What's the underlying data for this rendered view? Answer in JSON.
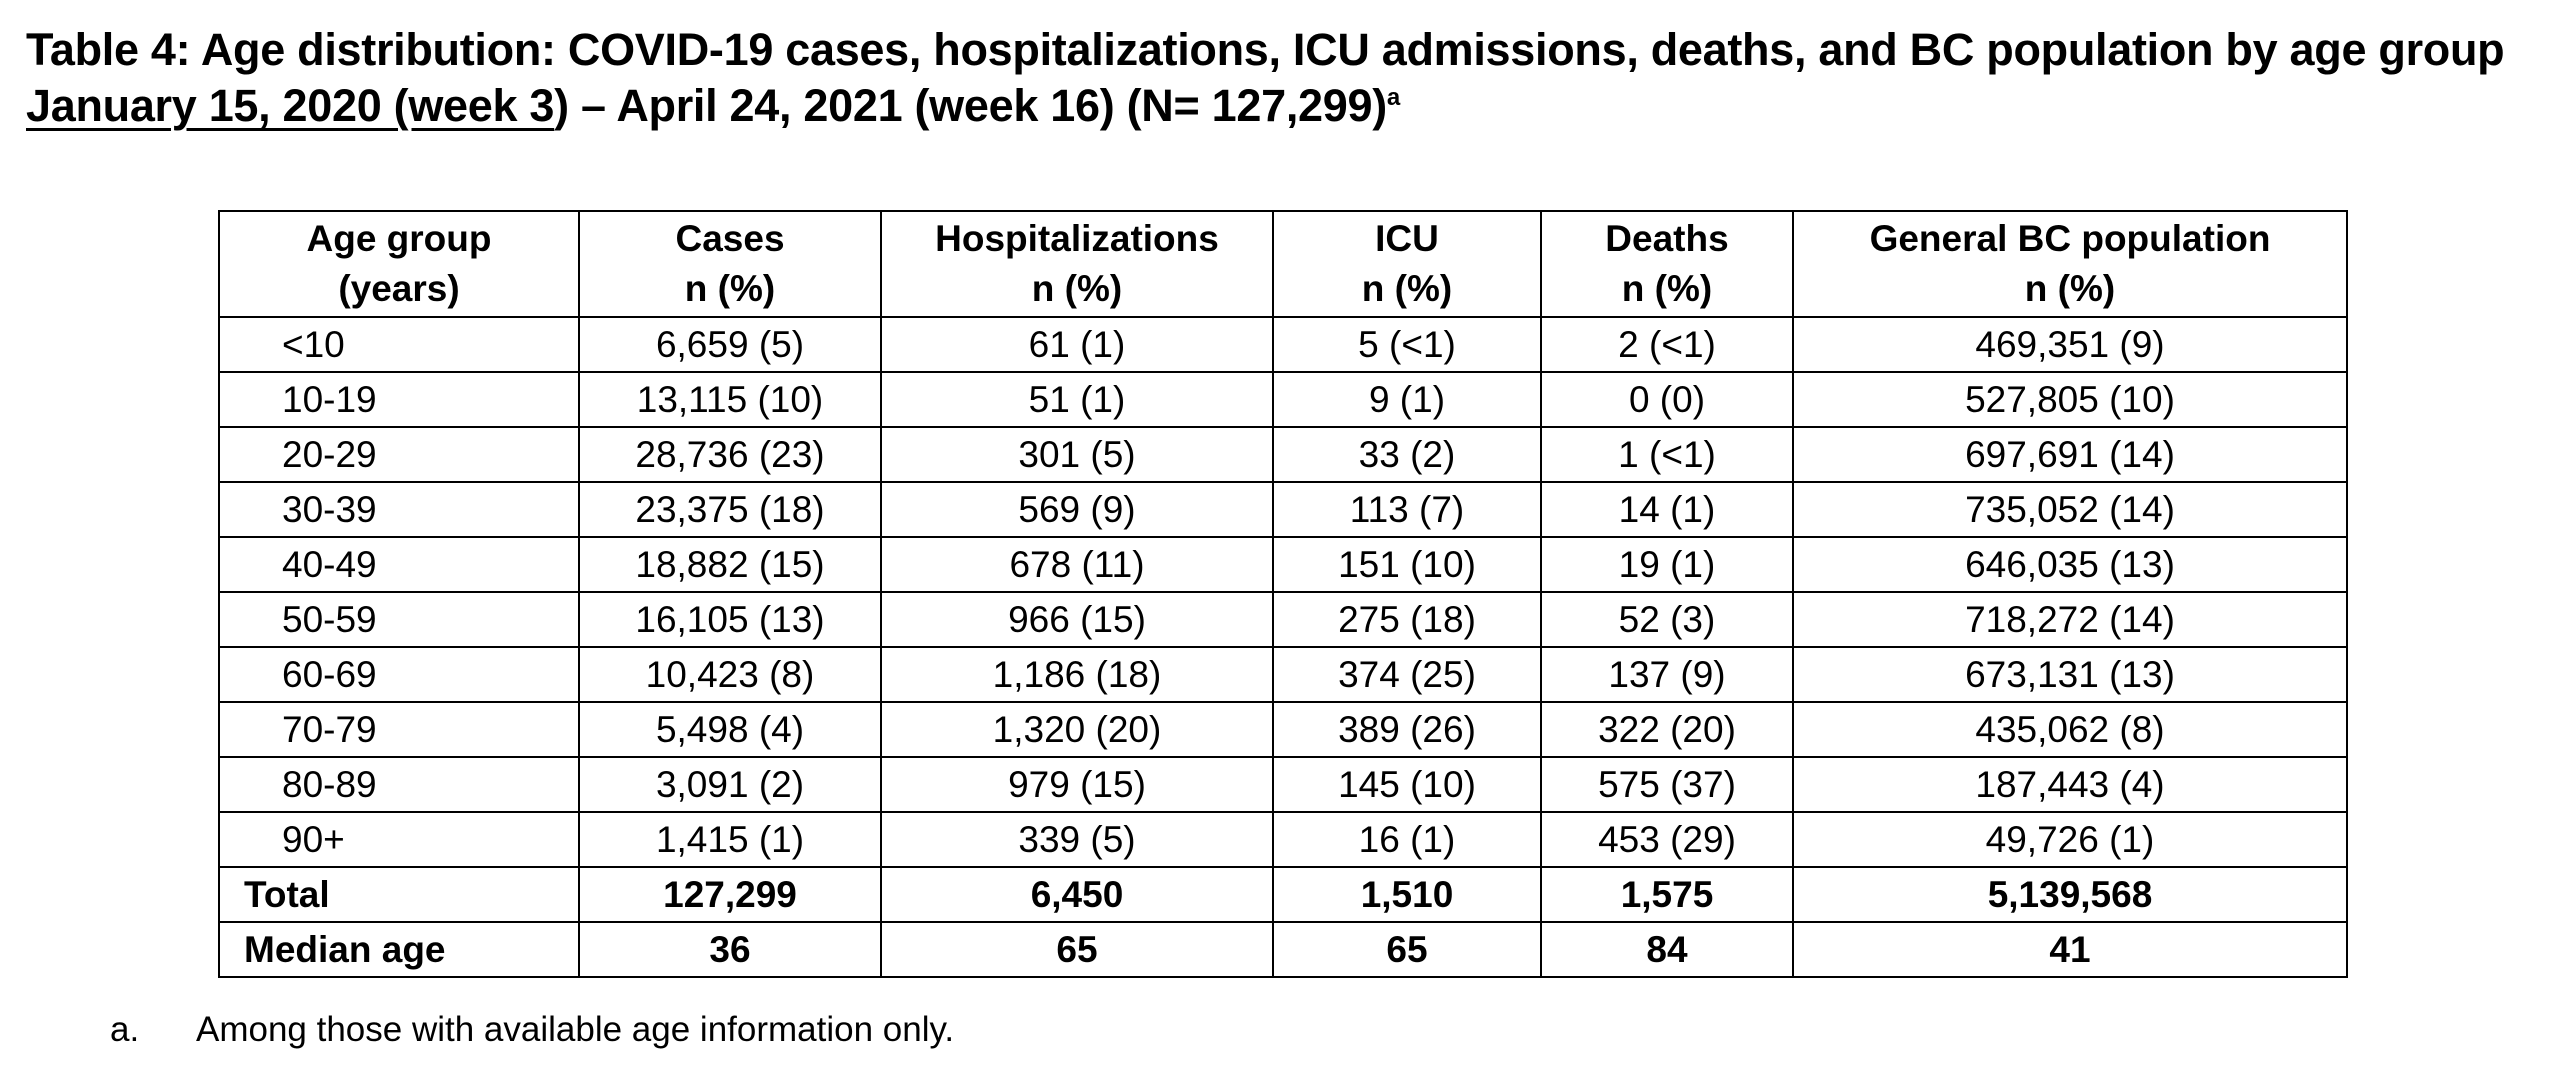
{
  "title": {
    "line1": "Table 4: Age distribution: COVID-19 cases, hospitalizations, ICU admissions, deaths, and BC population by age group",
    "line2_underlined": "January 15, 2020 (week 3",
    "line2_rest": ") – April 24, 2021 (week 16) (N= 127,299)",
    "superscript": "a"
  },
  "table": {
    "headers": [
      {
        "line1": "Age group",
        "line2": "(years)"
      },
      {
        "line1": "Cases",
        "line2": "n (%)"
      },
      {
        "line1": "Hospitalizations",
        "line2": "n (%)"
      },
      {
        "line1": "ICU",
        "line2": "n (%)"
      },
      {
        "line1": "Deaths",
        "line2": "n (%)"
      },
      {
        "line1": "General BC population",
        "line2": "n (%)"
      }
    ],
    "rows": [
      [
        "<10",
        "6,659 (5)",
        "61 (1)",
        "5 (<1)",
        "2 (<1)",
        "469,351 (9)"
      ],
      [
        "10-19",
        "13,115 (10)",
        "51 (1)",
        "9 (1)",
        "0 (0)",
        "527,805 (10)"
      ],
      [
        "20-29",
        "28,736 (23)",
        "301 (5)",
        "33 (2)",
        "1 (<1)",
        "697,691 (14)"
      ],
      [
        "30-39",
        "23,375 (18)",
        "569 (9)",
        "113 (7)",
        "14 (1)",
        "735,052 (14)"
      ],
      [
        "40-49",
        "18,882 (15)",
        "678 (11)",
        "151 (10)",
        "19 (1)",
        "646,035 (13)"
      ],
      [
        "50-59",
        "16,105 (13)",
        "966 (15)",
        "275 (18)",
        "52 (3)",
        "718,272 (14)"
      ],
      [
        "60-69",
        "10,423 (8)",
        "1,186 (18)",
        "374 (25)",
        "137 (9)",
        "673,131 (13)"
      ],
      [
        "70-79",
        "5,498 (4)",
        "1,320 (20)",
        "389 (26)",
        "322 (20)",
        "435,062 (8)"
      ],
      [
        "80-89",
        "3,091 (2)",
        "979 (15)",
        "145 (10)",
        "575 (37)",
        "187,443 (4)"
      ],
      [
        "90+",
        "1,415 (1)",
        "339 (5)",
        "16 (1)",
        "453 (29)",
        "49,726 (1)"
      ]
    ],
    "summary_rows": [
      [
        "Total",
        "127,299",
        "6,450",
        "1,510",
        "1,575",
        "5,139,568"
      ],
      [
        "Median age",
        "36",
        "65",
        "65",
        "84",
        "41"
      ]
    ]
  },
  "footnote": {
    "mark": "a.",
    "text": "Among those with available age information only."
  }
}
